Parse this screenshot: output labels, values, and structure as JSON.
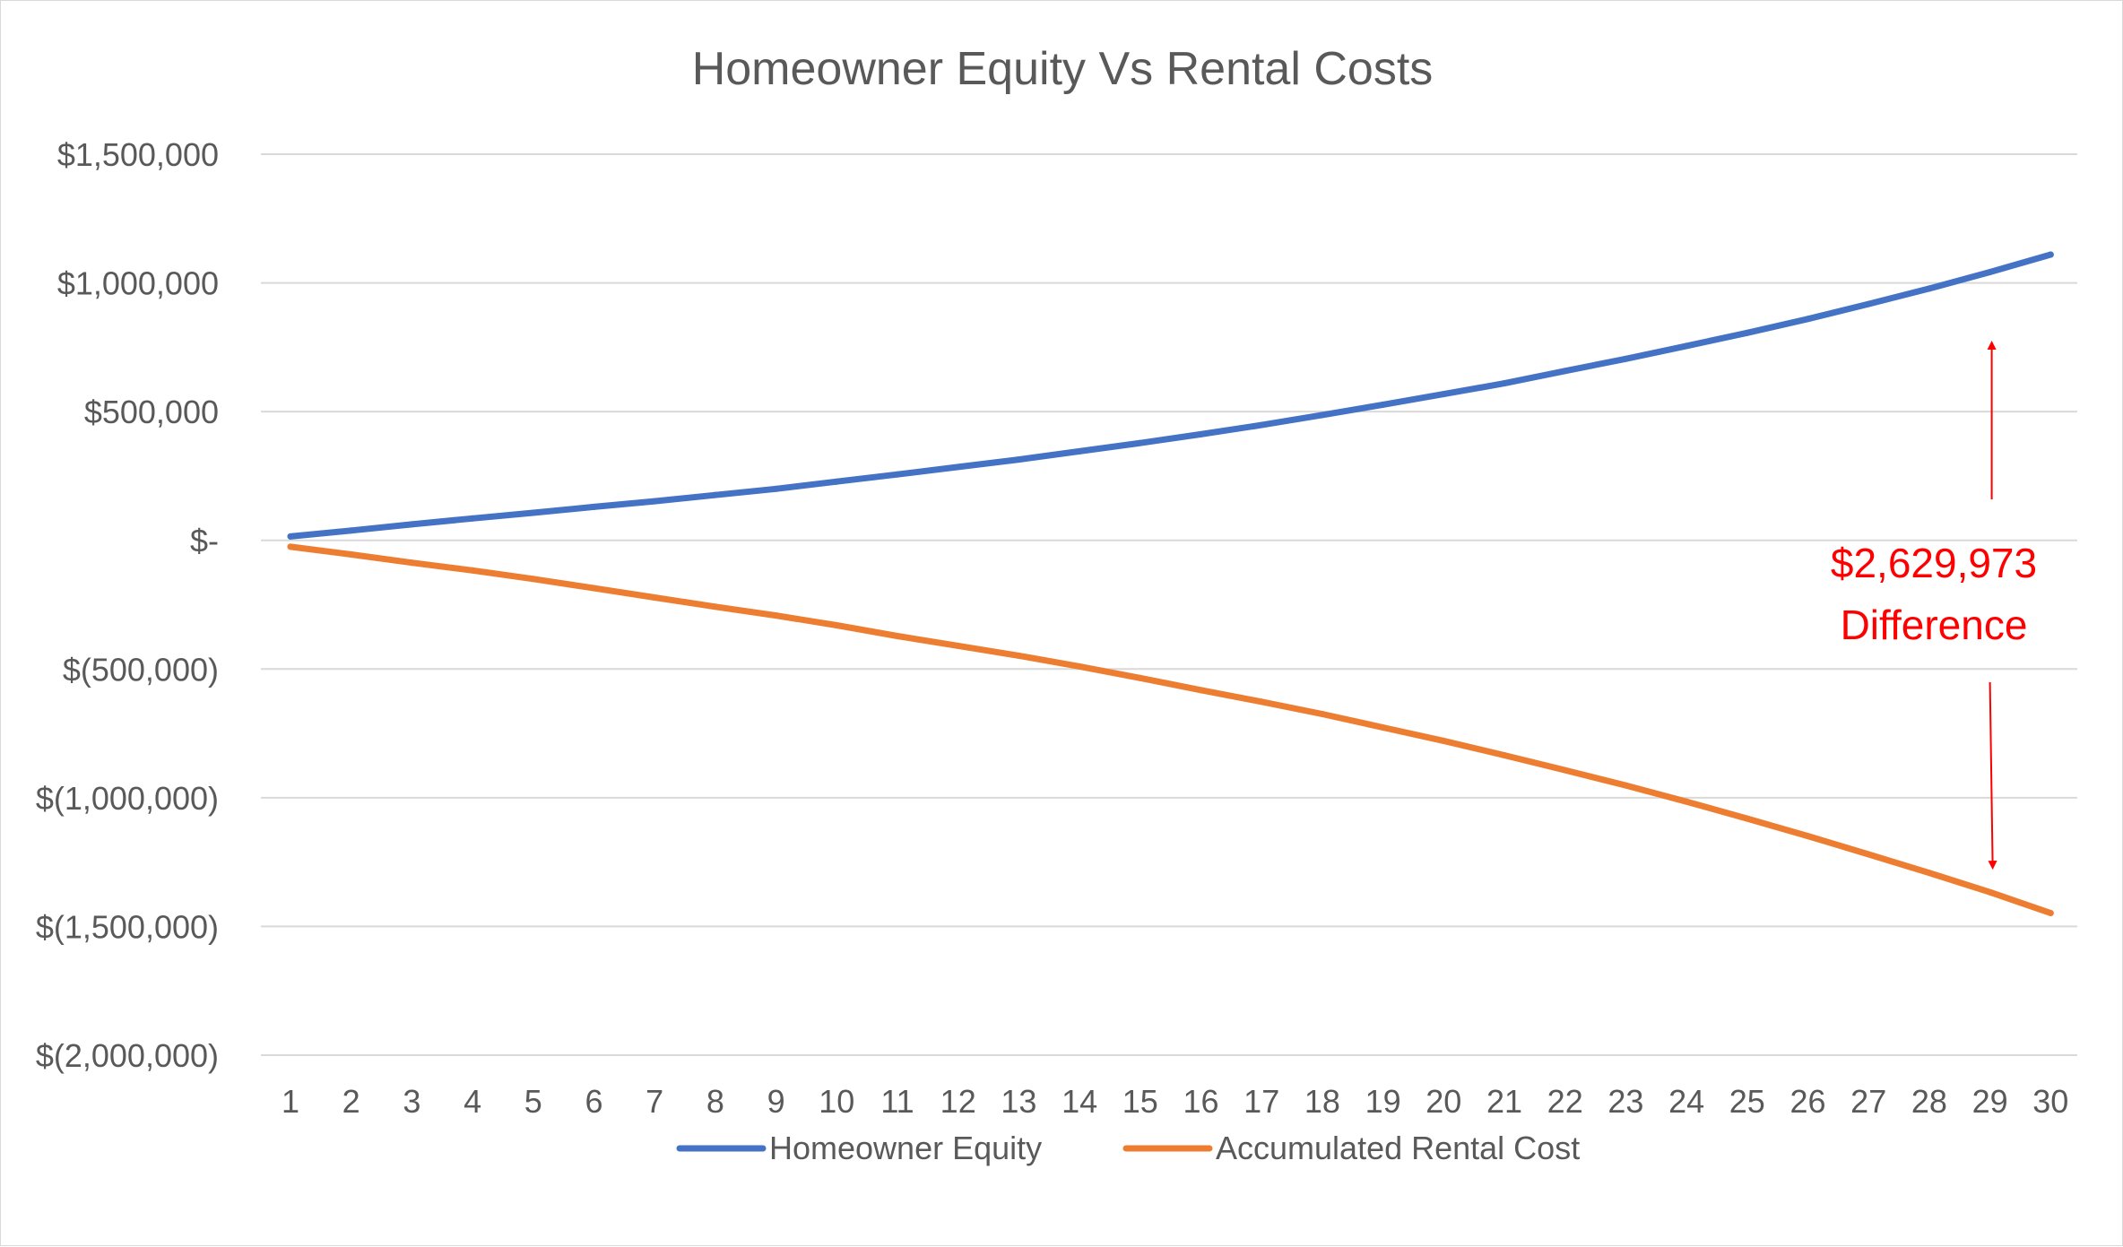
{
  "chart_data": {
    "type": "line",
    "title": "Homeowner Equity Vs Rental Costs",
    "xlabel": "",
    "ylabel": "",
    "x": [
      1,
      2,
      3,
      4,
      5,
      6,
      7,
      8,
      9,
      10,
      11,
      12,
      13,
      14,
      15,
      16,
      17,
      18,
      19,
      20,
      21,
      22,
      23,
      24,
      25,
      26,
      27,
      28,
      29,
      30
    ],
    "ylim": [
      -2000000,
      1500000
    ],
    "y_ticks": [
      {
        "value": 1500000,
        "label": "$1,500,000"
      },
      {
        "value": 1000000,
        "label": "$1,000,000"
      },
      {
        "value": 500000,
        "label": "$500,000"
      },
      {
        "value": 0,
        "label": "$-"
      },
      {
        "value": -500000,
        "label": "$(500,000)"
      },
      {
        "value": -1000000,
        "label": "$(1,000,000)"
      },
      {
        "value": -1500000,
        "label": "$(1,500,000)"
      },
      {
        "value": -2000000,
        "label": "$(2,000,000)"
      }
    ],
    "grid": true,
    "legend_position": "bottom",
    "series": [
      {
        "name": "Homeowner Equity",
        "color": "#4472C4",
        "values": [
          15000,
          38000,
          62000,
          85000,
          107000,
          130000,
          152000,
          176000,
          200000,
          228000,
          256000,
          285000,
          314000,
          346000,
          378000,
          412000,
          448000,
          487000,
          527000,
          568000,
          610000,
          658000,
          705000,
          755000,
          806000,
          860000,
          918000,
          978000,
          1042000,
          1110000
        ]
      },
      {
        "name": "Accumulated Rental Cost",
        "color": "#ED7D31",
        "values": [
          -25000,
          -55000,
          -87000,
          -117000,
          -150000,
          -186000,
          -222000,
          -258000,
          -292000,
          -330000,
          -372000,
          -410000,
          -448000,
          -490000,
          -535000,
          -582000,
          -627000,
          -675000,
          -727000,
          -779000,
          -835000,
          -893000,
          -952000,
          -1015000,
          -1081000,
          -1149000,
          -1220000,
          -1292000,
          -1367000,
          -1448000
        ]
      }
    ],
    "annotation": {
      "text_line1": "$2,629,973",
      "text_line2": "Difference",
      "color": "#FF0000",
      "x": 29,
      "arrow_up_to": 800000,
      "arrow_down_to": -1290000
    },
    "colors": {
      "grid": "#D9D9D9",
      "text": "#595959",
      "border": "#D9D9D9"
    }
  }
}
